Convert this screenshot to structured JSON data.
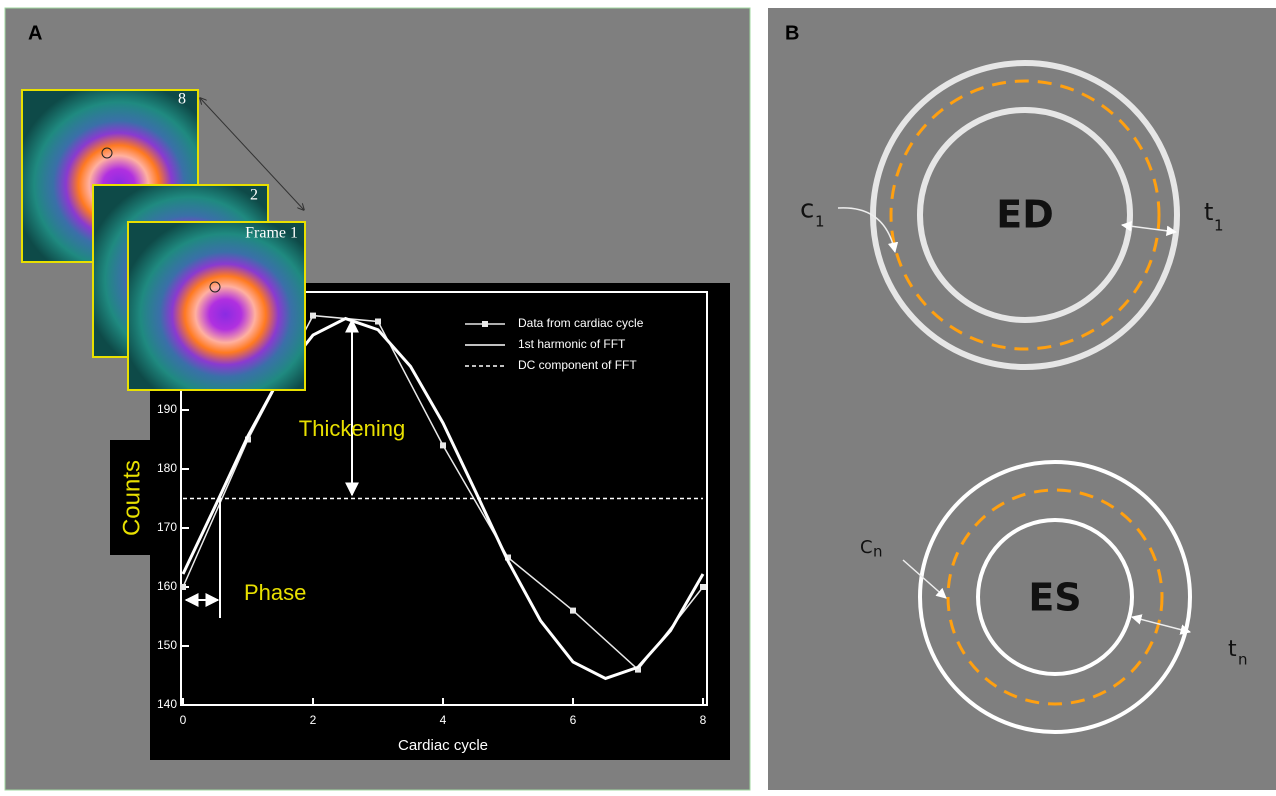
{
  "panel_labels": [
    "A",
    "B"
  ],
  "frames": [
    "8",
    "2",
    "Frame 1"
  ],
  "chart_data": {
    "type": "line",
    "x_label": "Cardiac cycle",
    "y_label": "Counts",
    "xlim": [
      0,
      8
    ],
    "ylim": [
      140,
      210
    ],
    "xticks": [
      0,
      2,
      4,
      6,
      8
    ],
    "yticks": [
      140,
      150,
      160,
      170,
      180,
      190
    ],
    "legend": "upper right",
    "annotations": [
      "Thickening",
      "Phase"
    ],
    "series": [
      {
        "name": "Data from cardiac cycle",
        "color": "#e8e8e8",
        "style": "solid",
        "marker": true,
        "x": [
          0,
          1,
          2,
          3,
          4,
          5,
          6,
          7,
          8
        ],
        "values": [
          160,
          185,
          206,
          205,
          184,
          165,
          156,
          146,
          160
        ]
      },
      {
        "name": "1st harmonic of FFT",
        "color": "#ffffff",
        "style": "solid",
        "marker": false,
        "x": [
          0,
          0.5,
          1,
          1.5,
          2,
          2.5,
          3,
          3.5,
          4,
          4.5,
          5,
          5.5,
          6,
          6.5,
          7,
          7.5,
          8
        ],
        "values": [
          162.2,
          173.8,
          185.6,
          195.7,
          202.7,
          205.5,
          203.6,
          197.4,
          187.8,
          176.2,
          164.4,
          154.3,
          147.3,
          144.5,
          146.4,
          152.6,
          162.2
        ]
      },
      {
        "name": "DC component of FFT",
        "color": "#ffffff",
        "style": "dashed",
        "marker": false,
        "x": [
          0,
          8
        ],
        "values": [
          175,
          175
        ]
      }
    ]
  },
  "diagram": {
    "ed": {
      "label": "ED",
      "c": "c",
      "c_sub": "1",
      "t": "t",
      "t_sub": "1"
    },
    "es": {
      "label": "ES",
      "c": "C",
      "c_sub": "n",
      "t": "t",
      "t_sub": "n"
    }
  }
}
